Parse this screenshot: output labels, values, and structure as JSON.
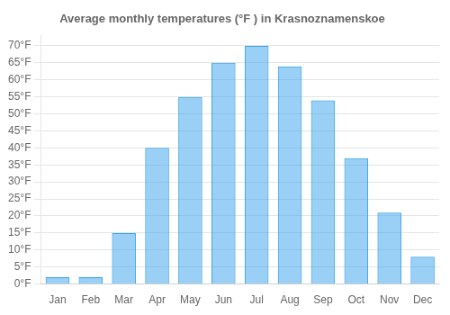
{
  "chart_data": {
    "type": "bar",
    "title": "Average monthly temperatures (°F ) in Krasnoznamenskoe",
    "categories": [
      "Jan",
      "Feb",
      "Mar",
      "Apr",
      "May",
      "Jun",
      "Jul",
      "Aug",
      "Sep",
      "Oct",
      "Nov",
      "Dec"
    ],
    "values": [
      2,
      2,
      15,
      40,
      55,
      65,
      70,
      64,
      54,
      37,
      21,
      8
    ],
    "ylim": [
      0,
      73
    ],
    "yticks": [
      {
        "value": 0,
        "label": "0°F"
      },
      {
        "value": 5,
        "label": "5°F"
      },
      {
        "value": 10,
        "label": "10°F"
      },
      {
        "value": 15,
        "label": "15°F"
      },
      {
        "value": 20,
        "label": "20°F"
      },
      {
        "value": 25,
        "label": "25°F"
      },
      {
        "value": 30,
        "label": "30°F"
      },
      {
        "value": 35,
        "label": "35°F"
      },
      {
        "value": 40,
        "label": "40°F"
      },
      {
        "value": 45,
        "label": "45°F"
      },
      {
        "value": 50,
        "label": "50°F"
      },
      {
        "value": 55,
        "label": "55°F"
      },
      {
        "value": 60,
        "label": "60°F"
      },
      {
        "value": 65,
        "label": "65°F"
      },
      {
        "value": 70,
        "label": "70°F"
      }
    ],
    "grid": true
  }
}
